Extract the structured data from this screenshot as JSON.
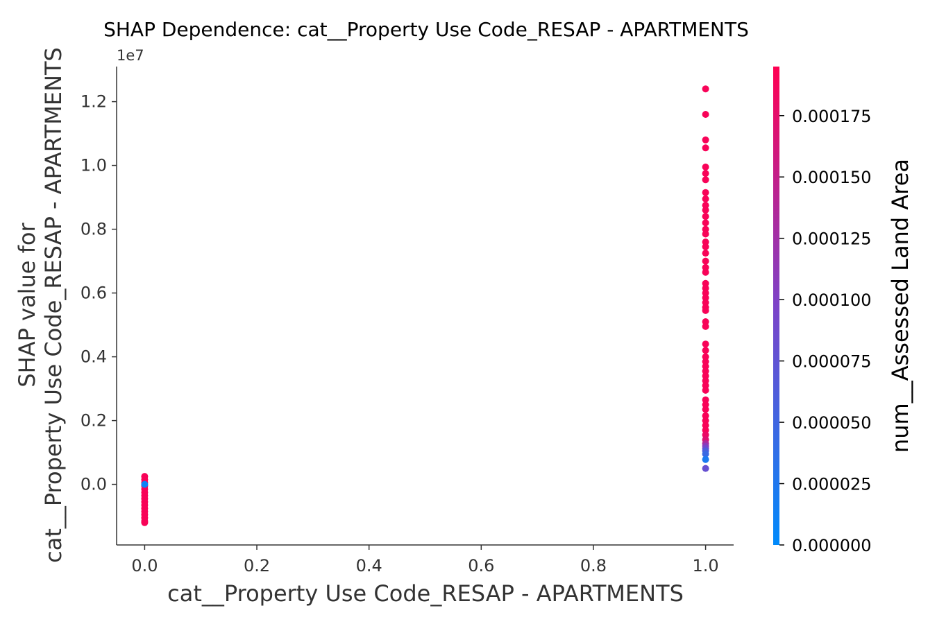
{
  "chart_data": {
    "type": "scatter",
    "title": "SHAP Dependence: cat__Property Use Code_RESAP - APARTMENTS",
    "xlabel": "cat__Property Use Code_RESAP - APARTMENTS",
    "ylabel_line1": "SHAP value for",
    "ylabel_line2": "cat__Property Use Code_RESAP - APARTMENTS",
    "y_offset_label": "1e7",
    "xlim": [
      -0.05,
      1.05
    ],
    "ylim": [
      -0.19,
      1.31
    ],
    "x_ticks": [
      0.0,
      0.2,
      0.4,
      0.6,
      0.8,
      1.0
    ],
    "x_tick_labels": [
      "0.0",
      "0.2",
      "0.4",
      "0.6",
      "0.8",
      "1.0"
    ],
    "y_ticks": [
      0.0,
      0.2,
      0.4,
      0.6,
      0.8,
      1.0,
      1.2
    ],
    "y_tick_labels": [
      "0.0",
      "0.2",
      "0.4",
      "0.6",
      "0.8",
      "1.0",
      "1.2"
    ],
    "colorbar": {
      "label": "num__Assessed Land Area",
      "range": [
        0.0,
        0.000195
      ],
      "ticks": [
        0.0,
        2.5e-05,
        5e-05,
        7.5e-05,
        0.0001,
        0.000125,
        0.00015,
        0.000175
      ],
      "tick_labels": [
        "0.000000",
        "0.000025",
        "0.000050",
        "0.000075",
        "0.000100",
        "0.000125",
        "0.000150",
        "0.000175"
      ],
      "colors": [
        "#008afb",
        "#7c43c8",
        "#ff0052"
      ]
    },
    "grid": false,
    "series": [
      {
        "points": [
          [
            0,
            0.025,
            0.00019
          ],
          [
            0,
            0.015,
            0.00019
          ],
          [
            0,
            0.005,
            0.00019
          ],
          [
            0,
            -0.005,
            0.00019
          ],
          [
            0,
            -0.015,
            0.00019
          ],
          [
            0,
            -0.025,
            0.00019
          ],
          [
            0,
            -0.035,
            0.00019
          ],
          [
            0,
            -0.045,
            0.00019
          ],
          [
            0,
            -0.055,
            0.00019
          ],
          [
            0,
            -0.065,
            0.00019
          ],
          [
            0,
            -0.075,
            0.00019
          ],
          [
            0,
            -0.085,
            0.00019
          ],
          [
            0,
            -0.095,
            0.00019
          ],
          [
            0,
            -0.105,
            0.00019
          ],
          [
            0,
            -0.115,
            0.00019
          ],
          [
            0,
            -0.12,
            0.00019
          ],
          [
            0,
            0.0,
            1e-05
          ],
          [
            1,
            1.24,
            0.00019
          ],
          [
            1,
            1.16,
            0.00019
          ],
          [
            1,
            1.08,
            0.00019
          ],
          [
            1,
            1.055,
            0.00019
          ],
          [
            1,
            0.995,
            0.00019
          ],
          [
            1,
            0.975,
            0.00019
          ],
          [
            1,
            0.955,
            0.00019
          ],
          [
            1,
            0.915,
            0.00019
          ],
          [
            1,
            0.895,
            0.00019
          ],
          [
            1,
            0.875,
            0.00019
          ],
          [
            1,
            0.86,
            0.00019
          ],
          [
            1,
            0.84,
            0.00019
          ],
          [
            1,
            0.82,
            0.00019
          ],
          [
            1,
            0.8,
            0.00019
          ],
          [
            1,
            0.785,
            0.00019
          ],
          [
            1,
            0.76,
            0.00019
          ],
          [
            1,
            0.745,
            0.00019
          ],
          [
            1,
            0.725,
            0.00019
          ],
          [
            1,
            0.7,
            0.00019
          ],
          [
            1,
            0.68,
            0.00019
          ],
          [
            1,
            0.665,
            0.00019
          ],
          [
            1,
            0.63,
            0.00019
          ],
          [
            1,
            0.615,
            0.00019
          ],
          [
            1,
            0.6,
            0.00019
          ],
          [
            1,
            0.585,
            0.00019
          ],
          [
            1,
            0.57,
            0.00019
          ],
          [
            1,
            0.555,
            0.00019
          ],
          [
            1,
            0.545,
            0.00019
          ],
          [
            1,
            0.51,
            0.00019
          ],
          [
            1,
            0.495,
            0.00019
          ],
          [
            1,
            0.44,
            0.00019
          ],
          [
            1,
            0.42,
            0.00019
          ],
          [
            1,
            0.4,
            0.00019
          ],
          [
            1,
            0.385,
            0.00019
          ],
          [
            1,
            0.37,
            0.00019
          ],
          [
            1,
            0.355,
            0.00019
          ],
          [
            1,
            0.34,
            0.00019
          ],
          [
            1,
            0.325,
            0.00019
          ],
          [
            1,
            0.31,
            0.00019
          ],
          [
            1,
            0.295,
            0.00019
          ],
          [
            1,
            0.265,
            0.00019
          ],
          [
            1,
            0.25,
            0.00019
          ],
          [
            1,
            0.235,
            0.00019
          ],
          [
            1,
            0.215,
            0.00019
          ],
          [
            1,
            0.2,
            0.00019
          ],
          [
            1,
            0.185,
            0.00019
          ],
          [
            1,
            0.17,
            0.00019
          ],
          [
            1,
            0.155,
            0.00018
          ],
          [
            1,
            0.14,
            0.00017
          ],
          [
            1,
            0.128,
            0.000135
          ],
          [
            1,
            0.12,
            0.00011
          ],
          [
            1,
            0.113,
            9e-05
          ],
          [
            1,
            0.105,
            6e-05
          ],
          [
            1,
            0.095,
            4.5e-05
          ],
          [
            1,
            0.078,
            2e-05
          ],
          [
            1,
            0.05,
            8e-05
          ]
        ]
      }
    ]
  }
}
